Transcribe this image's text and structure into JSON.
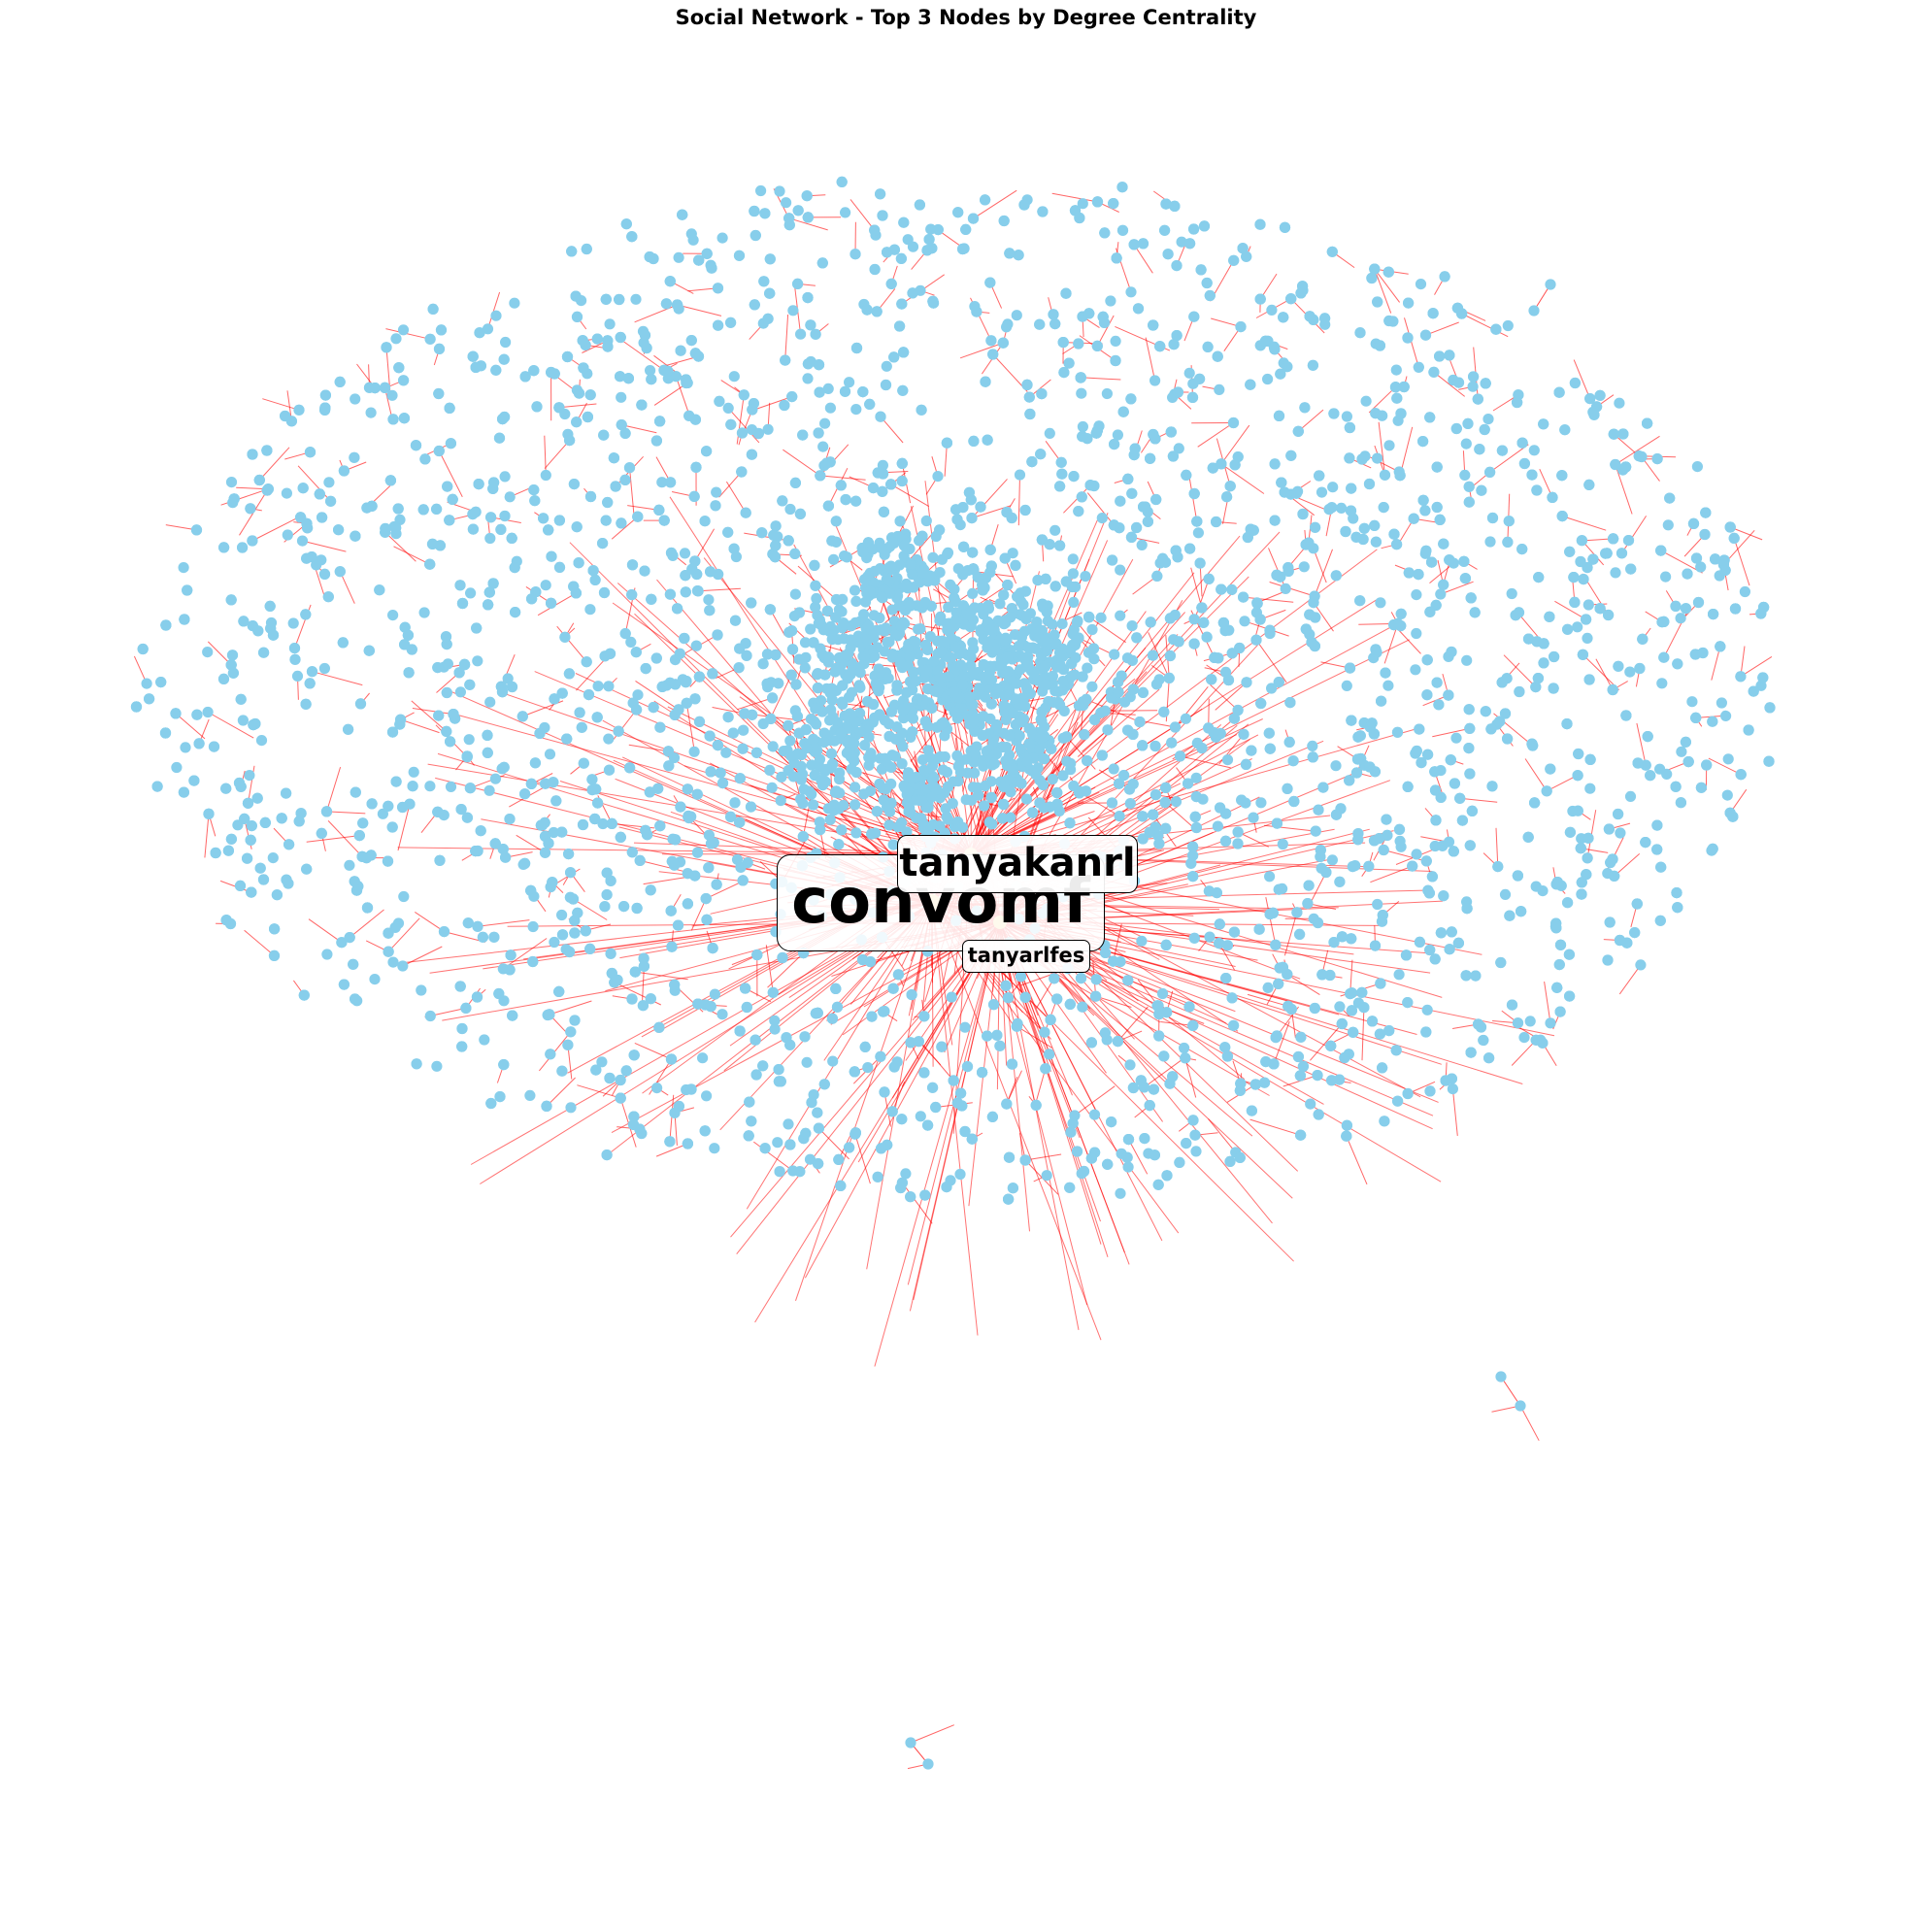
{
  "title": "Social Network - Top 3 Nodes by Degree Centrality",
  "labels": {
    "top1": "convomf",
    "top2": "tanyakanrl",
    "top3": "tanyarlfes"
  },
  "colors": {
    "node": "#87CEEB",
    "edge": "#FF0000",
    "hub_highlight": "#F5D76E"
  }
}
